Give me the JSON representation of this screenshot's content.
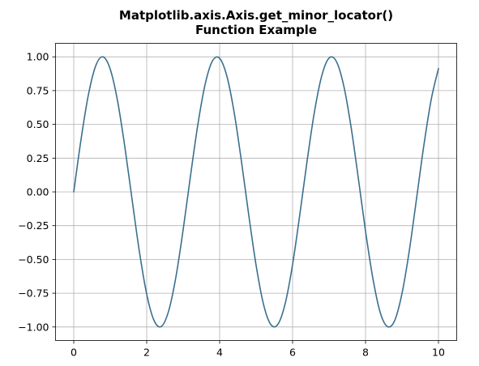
{
  "chart_data": {
    "type": "line",
    "title": [
      "Matplotlib.axis.Axis.get_minor_locator()",
      "Function Example"
    ],
    "xlabel": "",
    "ylabel": "",
    "xlim": [
      -0.5,
      10.5
    ],
    "ylim": [
      -1.1,
      1.1
    ],
    "xticks": [
      0,
      2,
      4,
      6,
      8,
      10
    ],
    "xtick_labels": [
      "0",
      "2",
      "4",
      "6",
      "8",
      "10"
    ],
    "yticks": [
      1.0,
      0.75,
      0.5,
      0.25,
      0.0,
      -0.25,
      -0.5,
      -0.75,
      -1.0
    ],
    "ytick_labels": [
      "1.00",
      "0.75",
      "0.50",
      "0.25",
      "0.00",
      "−0.25",
      "−0.50",
      "−0.75",
      "−1.00"
    ],
    "grid": true,
    "series": [
      {
        "color": "#3a6f8f",
        "x": [
          0.0,
          0.2,
          0.4,
          0.6,
          0.8,
          1.0,
          1.2,
          1.4,
          1.6,
          1.8,
          2.0,
          2.2,
          2.4,
          2.6,
          2.8,
          3.0,
          3.2,
          3.4,
          3.6,
          3.8,
          4.0,
          4.2,
          4.4,
          4.6,
          4.8,
          5.0,
          5.2,
          5.4,
          5.6,
          5.8,
          6.0,
          6.2,
          6.4,
          6.6,
          6.8,
          7.0,
          7.2,
          7.4,
          7.6,
          7.8,
          8.0,
          8.2,
          8.4,
          8.6,
          8.8,
          9.0,
          9.2,
          9.4,
          9.6,
          9.8,
          10.0
        ],
        "values": [
          0.0,
          0.389,
          0.717,
          0.932,
          1.0,
          0.909,
          0.675,
          0.335,
          -0.058,
          -0.443,
          -0.757,
          -0.951,
          -0.996,
          -0.883,
          -0.631,
          -0.279,
          0.117,
          0.494,
          0.794,
          0.968,
          0.989,
          0.855,
          0.585,
          0.222,
          -0.175,
          -0.544,
          -0.829,
          -0.981,
          -0.979,
          -0.823,
          -0.537,
          -0.164,
          0.233,
          0.594,
          0.86,
          0.991,
          0.966,
          0.789,
          0.486,
          0.106,
          -0.291,
          -0.638,
          -0.89,
          -0.997,
          -0.952,
          -0.751,
          -0.435,
          -0.047,
          0.346,
          0.683,
          0.913
        ]
      }
    ]
  }
}
